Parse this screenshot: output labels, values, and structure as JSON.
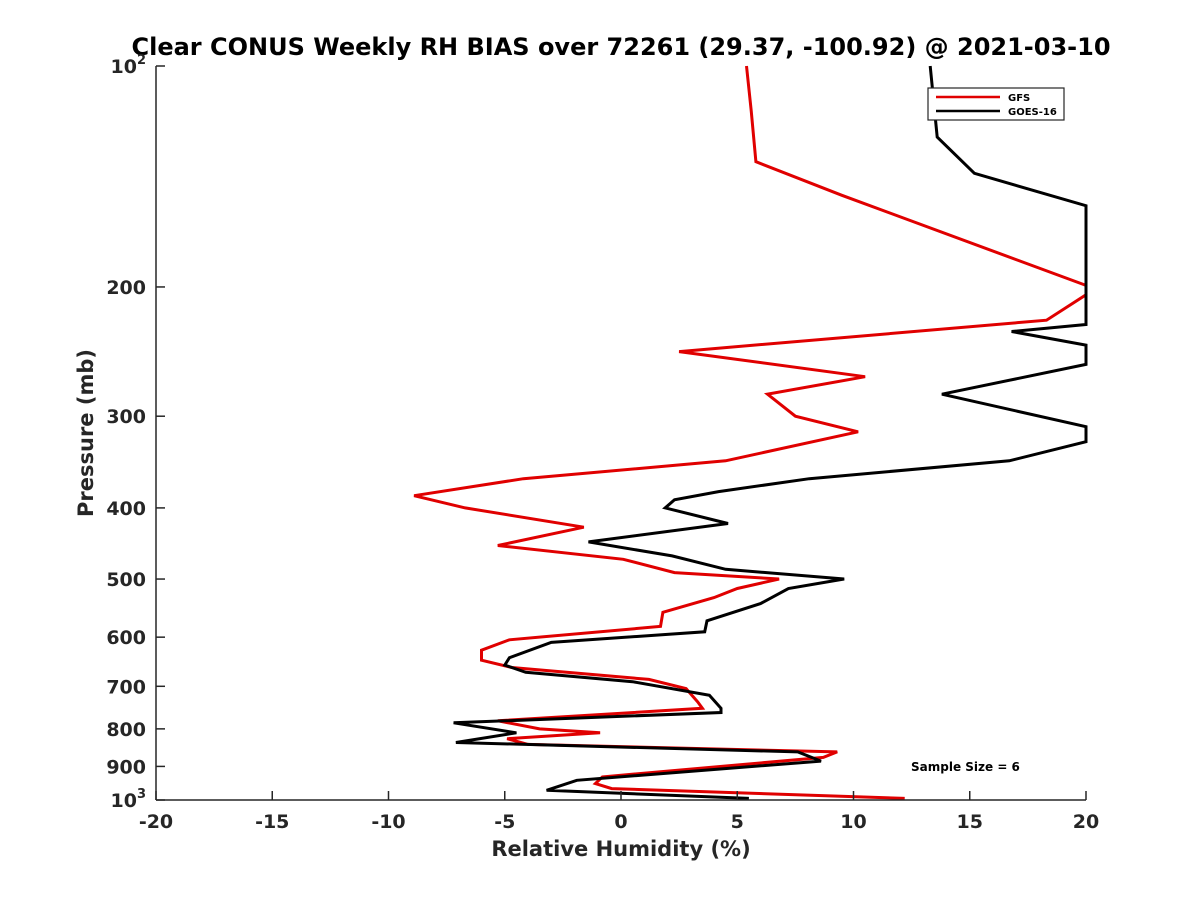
{
  "chart_data": {
    "type": "line",
    "title": "Clear CONUS Weekly RH BIAS over 72261 (29.37, -100.92) @ 2021-03-10",
    "xlabel": "Relative Humidity (%)",
    "ylabel": "Pressure (mb)",
    "xlim": [
      -20,
      20
    ],
    "ylim": [
      100,
      1000
    ],
    "yscale": "log",
    "y_reversed": true,
    "grid": false,
    "legend_position": "top-right",
    "x_ticks": [
      -20,
      -15,
      -10,
      -5,
      0,
      5,
      10,
      15,
      20
    ],
    "x_tick_labels": [
      "-20",
      "-15",
      "-10",
      "-5",
      "0",
      "5",
      "10",
      "15",
      "20"
    ],
    "y_ticks": [
      100,
      200,
      300,
      400,
      500,
      600,
      700,
      800,
      900,
      1000
    ],
    "y_tick_labels": [
      {
        "base": "10",
        "sup": "2"
      },
      {
        "base": "200",
        "sup": ""
      },
      {
        "base": "300",
        "sup": ""
      },
      {
        "base": "400",
        "sup": ""
      },
      {
        "base": "500",
        "sup": ""
      },
      {
        "base": "600",
        "sup": ""
      },
      {
        "base": "700",
        "sup": ""
      },
      {
        "base": "800",
        "sup": ""
      },
      {
        "base": "900",
        "sup": ""
      },
      {
        "base": "10",
        "sup": "3"
      }
    ],
    "annotation": "Sample Size = 6",
    "series": [
      {
        "name": "GFS",
        "color": "#e00000",
        "points": [
          [
            5.4,
            100
          ],
          [
            5.6,
            115
          ],
          [
            5.8,
            135
          ],
          [
            9.5,
            150
          ],
          [
            20,
            199
          ],
          [
            20,
            205
          ],
          [
            18.3,
            222
          ],
          [
            2.5,
            245
          ],
          [
            10.5,
            265
          ],
          [
            6.3,
            280
          ],
          [
            7.5,
            300
          ],
          [
            10.2,
            315
          ],
          [
            4.5,
            345
          ],
          [
            -4.2,
            365
          ],
          [
            -8.9,
            385
          ],
          [
            -6.7,
            400
          ],
          [
            -1.6,
            425
          ],
          [
            -5.3,
            450
          ],
          [
            0.1,
            470
          ],
          [
            2.3,
            490
          ],
          [
            6.8,
            500
          ],
          [
            5.0,
            515
          ],
          [
            4.0,
            530
          ],
          [
            1.8,
            555
          ],
          [
            1.7,
            580
          ],
          [
            -4.8,
            605
          ],
          [
            -6.0,
            625
          ],
          [
            -6.0,
            645
          ],
          [
            -4.7,
            660
          ],
          [
            1.2,
            685
          ],
          [
            2.8,
            705
          ],
          [
            3.3,
            735
          ],
          [
            3.5,
            750
          ],
          [
            -5.3,
            780
          ],
          [
            -3.5,
            800
          ],
          [
            -0.9,
            810
          ],
          [
            -4.9,
            825
          ],
          [
            -4.0,
            840
          ],
          [
            9.3,
            860
          ],
          [
            8.7,
            875
          ],
          [
            -0.8,
            930
          ],
          [
            -1.1,
            950
          ],
          [
            -0.4,
            965
          ],
          [
            12.2,
            995
          ]
        ]
      },
      {
        "name": "GOES-16",
        "color": "#000000",
        "points": [
          [
            13.3,
            100
          ],
          [
            13.6,
            125
          ],
          [
            15.2,
            140
          ],
          [
            20,
            155
          ],
          [
            20,
            225
          ],
          [
            16.8,
            230
          ],
          [
            20,
            240
          ],
          [
            20,
            255
          ],
          [
            13.8,
            280
          ],
          [
            20,
            310
          ],
          [
            20,
            325
          ],
          [
            16.7,
            345
          ],
          [
            8.1,
            365
          ],
          [
            4.2,
            380
          ],
          [
            2.3,
            390
          ],
          [
            1.9,
            400
          ],
          [
            4.6,
            420
          ],
          [
            -1.4,
            445
          ],
          [
            2.2,
            465
          ],
          [
            4.5,
            485
          ],
          [
            9.6,
            500
          ],
          [
            7.2,
            515
          ],
          [
            6.0,
            540
          ],
          [
            3.7,
            570
          ],
          [
            3.6,
            590
          ],
          [
            -3.0,
            610
          ],
          [
            -4.8,
            640
          ],
          [
            -5.0,
            655
          ],
          [
            -4.1,
            670
          ],
          [
            0.5,
            690
          ],
          [
            3.8,
            720
          ],
          [
            4.3,
            750
          ],
          [
            4.3,
            760
          ],
          [
            -7.2,
            785
          ],
          [
            -4.5,
            810
          ],
          [
            -7.1,
            835
          ],
          [
            7.6,
            860
          ],
          [
            8.6,
            885
          ],
          [
            -1.9,
            940
          ],
          [
            -3.2,
            970
          ],
          [
            5.5,
            995
          ]
        ]
      }
    ]
  }
}
